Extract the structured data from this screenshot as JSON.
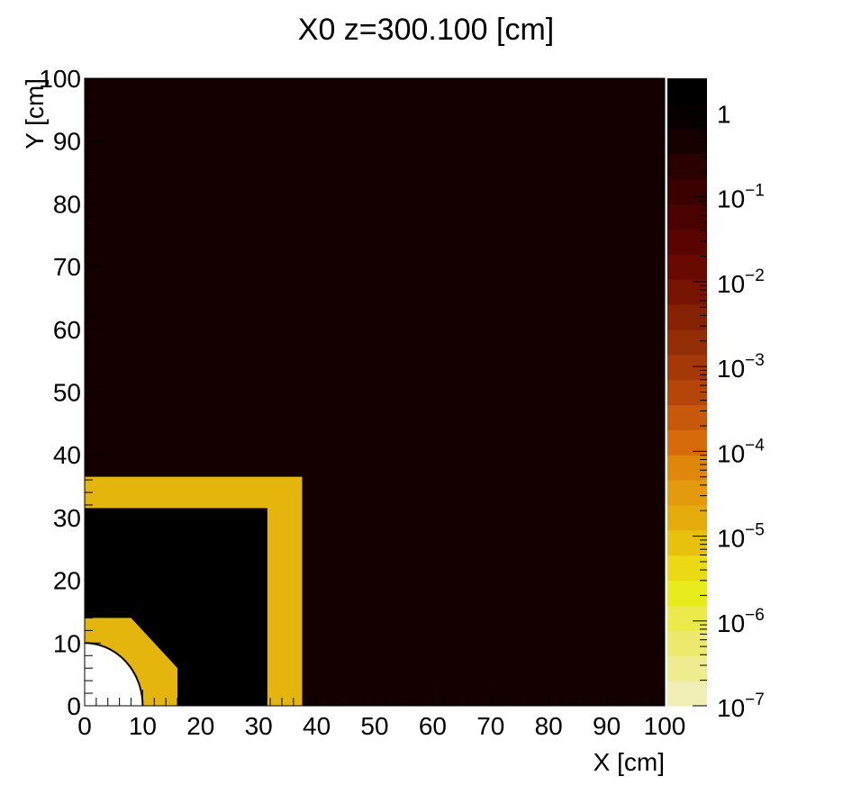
{
  "chart_data": {
    "type": "heatmap",
    "title": "X0 z=300.100 [cm]",
    "xlabel": "X [cm]",
    "ylabel": "Y [cm]",
    "xlim": [
      0,
      100
    ],
    "ylim": [
      0,
      100
    ],
    "x_tick_labels": [
      "0",
      "10",
      "20",
      "30",
      "40",
      "50",
      "60",
      "70",
      "80",
      "90",
      "100"
    ],
    "y_tick_labels": [
      "0",
      "10",
      "20",
      "30",
      "40",
      "50",
      "60",
      "70",
      "80",
      "90",
      "100"
    ],
    "z_scale": "log",
    "z_range": [
      1e-07,
      2.5
    ],
    "z_labels": [
      {
        "value": 1,
        "base": "1",
        "exp": ""
      },
      {
        "value": 0.1,
        "base": "10",
        "exp": "−1"
      },
      {
        "value": 0.01,
        "base": "10",
        "exp": "−2"
      },
      {
        "value": 0.001,
        "base": "10",
        "exp": "−3"
      },
      {
        "value": 0.0001,
        "base": "10",
        "exp": "−4"
      },
      {
        "value": 1e-05,
        "base": "10",
        "exp": "−5"
      },
      {
        "value": 1e-06,
        "base": "10",
        "exp": "−6"
      },
      {
        "value": 1e-07,
        "base": "10",
        "exp": "−7"
      }
    ],
    "palette": [
      "#f0eeb4",
      "#eeec8e",
      "#ece96c",
      "#ebe94c",
      "#e8eb1a",
      "#ead913",
      "#e8c10d",
      "#e4ab0c",
      "#e39b0d",
      "#df870b",
      "#d76b0b",
      "#c8580a",
      "#b54508",
      "#a43806",
      "#922d05",
      "#852204",
      "#771403",
      "#690a02",
      "#5a0401",
      "#4a0201",
      "#3a0100",
      "#2a0100",
      "#160000",
      "#060000"
    ],
    "palette_top_color": "#000000",
    "background": {
      "value": 1,
      "color": "#140000"
    },
    "regions": [
      {
        "name": "outer-yellow-frame",
        "shape": "rect",
        "x": [
          0,
          37.5
        ],
        "y": [
          0,
          36.5
        ],
        "color": "#e4b50c"
      },
      {
        "name": "black-block",
        "shape": "rect",
        "x": [
          0,
          31.5
        ],
        "y": [
          0,
          31.5
        ],
        "color": "#000000"
      },
      {
        "name": "inner-yellow-chamfered",
        "shape": "polygon",
        "points": [
          [
            0,
            0
          ],
          [
            0,
            14
          ],
          [
            8,
            14
          ],
          [
            16,
            6
          ],
          [
            16,
            0
          ]
        ],
        "color": "#e4b50c"
      },
      {
        "name": "beam-hole",
        "shape": "circle",
        "center": [
          0,
          0
        ],
        "radius": 10,
        "color": "#ffffff",
        "edge": "#140000"
      }
    ]
  }
}
